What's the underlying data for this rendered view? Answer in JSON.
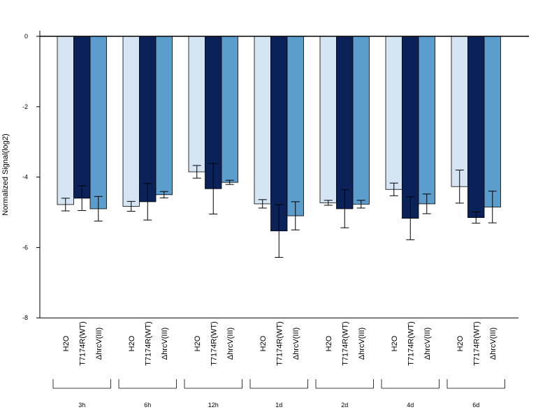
{
  "chart_data": {
    "type": "bar",
    "ylabel": "Normalized Signal(log2)",
    "ylim": [
      -8,
      0
    ],
    "yticks": [
      "0",
      "-2",
      "-4",
      "-6",
      "-8"
    ],
    "ytick_values": [
      0,
      -2,
      -4,
      -6,
      -8
    ],
    "groups": [
      "3h",
      "6h",
      "12h",
      "1d",
      "2d",
      "4d",
      "6d"
    ],
    "series": [
      {
        "name": "H2O",
        "color": "#d6e5f4",
        "values": [
          -4.78,
          -4.83,
          -3.85,
          -4.76,
          -4.73,
          -4.35,
          -4.27
        ],
        "errors": [
          0.18,
          0.14,
          0.18,
          0.12,
          0.07,
          0.18,
          0.47
        ]
      },
      {
        "name": "T7174R(WT)",
        "color": "#0a2258",
        "values": [
          -4.6,
          -4.7,
          -4.33,
          -5.53,
          -4.9,
          -5.17,
          -5.15
        ],
        "errors": [
          0.35,
          0.52,
          0.72,
          0.75,
          0.54,
          0.61,
          0.16
        ]
      },
      {
        "name": "ΔhrcV(III)",
        "color": "#5b9dcd",
        "values": [
          -4.9,
          -4.5,
          -4.15,
          -5.1,
          -4.77,
          -4.76,
          -4.85
        ],
        "errors": [
          0.35,
          0.09,
          0.06,
          0.4,
          0.11,
          0.28,
          0.45
        ]
      }
    ],
    "grid": false,
    "legend": "none"
  }
}
